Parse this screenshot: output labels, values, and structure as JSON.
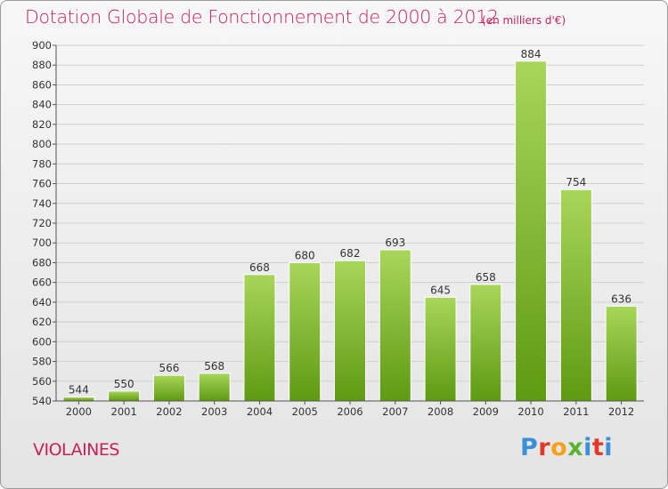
{
  "header": {
    "title": "Dotation Globale de Fonctionnement de 2000 à 2012",
    "unit_note": "(en milliers d'€)"
  },
  "footer": {
    "commune": "VIOLAINES",
    "brand_letters": [
      "P",
      "r",
      "o",
      "x",
      "i",
      "t",
      "i"
    ]
  },
  "colors": {
    "accent": "#c6215a",
    "bar_light": "#a8d65a",
    "bar_dark": "#5e9a12",
    "grid": "#cfcfcf"
  },
  "chart_data": {
    "type": "bar",
    "title": "Dotation Globale de Fonctionnement de 2000 à 2012",
    "categories": [
      "2000",
      "2001",
      "2002",
      "2003",
      "2004",
      "2005",
      "2006",
      "2007",
      "2008",
      "2009",
      "2010",
      "2011",
      "2012"
    ],
    "values": [
      544,
      550,
      566,
      568,
      668,
      680,
      682,
      693,
      645,
      658,
      884,
      754,
      636
    ],
    "value_labels": [
      "544",
      "550",
      "566",
      "568",
      "668",
      "680",
      "682",
      "693",
      "645",
      "658",
      "884",
      "754",
      "636"
    ],
    "ylim": [
      540,
      900
    ],
    "yticks": [
      540,
      560,
      580,
      600,
      620,
      640,
      660,
      680,
      700,
      720,
      740,
      760,
      780,
      800,
      820,
      840,
      860,
      880,
      900
    ],
    "grid": true,
    "legend": "none",
    "xlabel": "",
    "ylabel": ""
  }
}
